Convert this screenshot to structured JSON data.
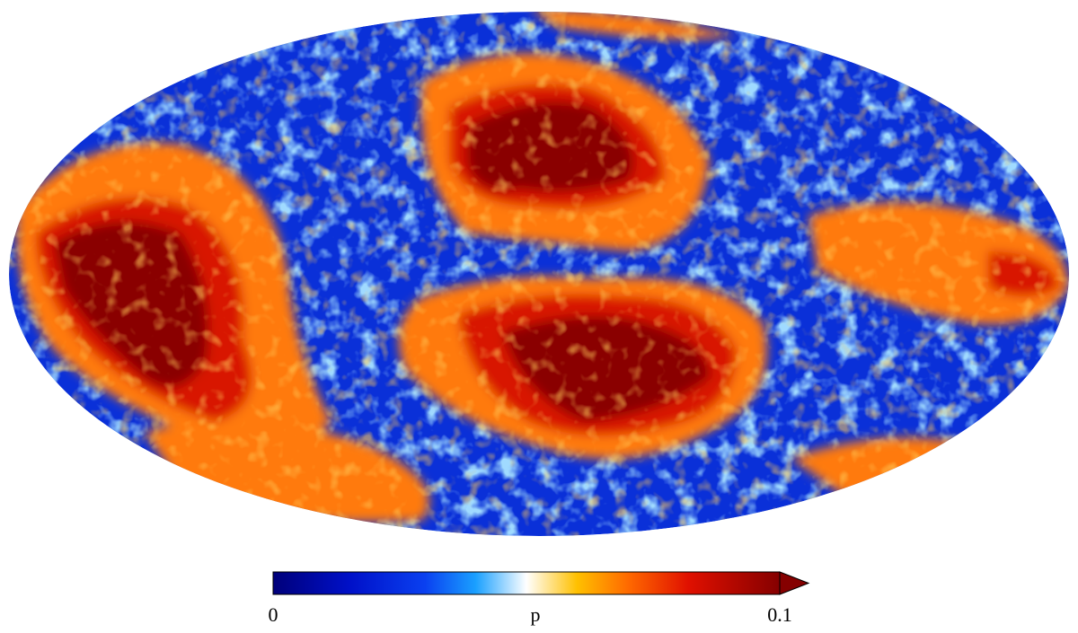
{
  "colorbar": {
    "label": "p",
    "lim": [
      0,
      0.1
    ],
    "ticks": [
      0,
      0.1
    ],
    "extend": "max"
  }
}
